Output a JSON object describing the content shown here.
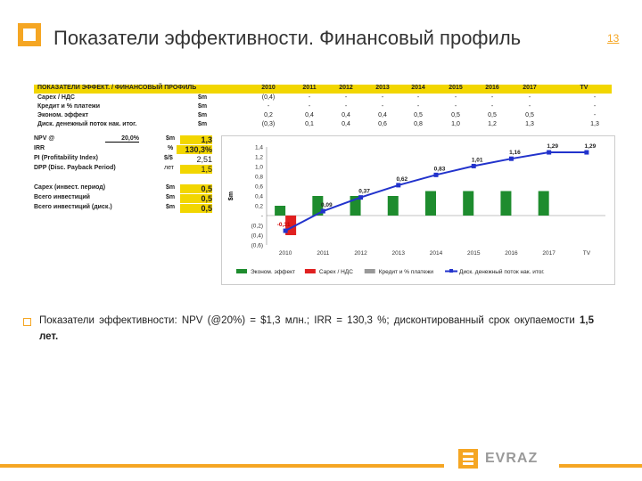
{
  "header": {
    "title": "Показатели эффективности. Финансовый профиль",
    "page": "13"
  },
  "table": {
    "header_label": "ПОКАЗАТЕЛИ ЭФФЕКТ. / ФИНАНСОВЫЙ ПРОФИЛЬ",
    "columns": [
      "2010",
      "2011",
      "2012",
      "2013",
      "2014",
      "2015",
      "2016",
      "2017",
      "TV"
    ],
    "rows": [
      {
        "label": "Capex / НДС",
        "unit": "$m",
        "values": [
          "(0,4)",
          "-",
          "-",
          "-",
          "-",
          "-",
          "-",
          "-",
          "-"
        ]
      },
      {
        "label": "Кредит и % платежи",
        "unit": "$m",
        "values": [
          "-",
          "-",
          "-",
          "-",
          "-",
          "-",
          "-",
          "-",
          "-"
        ]
      },
      {
        "label": "Эконом. эффект",
        "unit": "$m",
        "values": [
          "0,2",
          "0,4",
          "0,4",
          "0,4",
          "0,5",
          "0,5",
          "0,5",
          "0,5",
          "-"
        ]
      },
      {
        "label": "Диск. денежный поток нак. итог.",
        "unit": "$m",
        "values": [
          "(0,3)",
          "0,1",
          "0,4",
          "0,6",
          "0,8",
          "1,0",
          "1,2",
          "1,3",
          "1,3"
        ]
      }
    ]
  },
  "summary": {
    "npv_label": "NPV @",
    "npv_rate": "20,0%",
    "npv_unit": "$m",
    "npv_value": "1,3",
    "irr_label": "IRR",
    "irr_unit": "%",
    "irr_value": "130,3%",
    "pi_label": "PI (Profitability Index)",
    "pi_unit": "$/$",
    "pi_value": "2,51",
    "dpp_label": "DPP (Disc. Payback Period)",
    "dpp_unit": "лет",
    "dpp_value": "1,5",
    "capex_label": "Capex (инвест. период)",
    "capex_unit": "$m",
    "capex_value": "0,5",
    "total_label": "Всего инвестиций",
    "total_unit": "$m",
    "total_value": "0,5",
    "total_disc_label": "Всего инвестиций (диск.)",
    "total_disc_unit": "$m",
    "total_disc_value": "0,5"
  },
  "chart_data": {
    "type": "bar",
    "categories": [
      "2010",
      "2011",
      "2012",
      "2013",
      "2014",
      "2015",
      "2016",
      "2017",
      "TV"
    ],
    "ylabel": "$m",
    "ylim": [
      -0.6,
      1.4
    ],
    "yticks": [
      "1,4",
      "1,2",
      "1,0",
      "0,8",
      "0,6",
      "0,4",
      "0,2",
      "-",
      "(0,2)",
      "(0,4)",
      "(0,6)"
    ],
    "series": [
      {
        "name": "Эконом. эффект",
        "kind": "bar",
        "color": "#1e8c2e",
        "values": [
          0.2,
          0.4,
          0.4,
          0.4,
          0.5,
          0.5,
          0.5,
          0.5,
          null
        ]
      },
      {
        "name": "Capex / НДС",
        "kind": "bar",
        "color": "#e02020",
        "values": [
          -0.4,
          null,
          null,
          null,
          null,
          null,
          null,
          null,
          null
        ]
      },
      {
        "name": "Кредит и % платежи",
        "kind": "bar",
        "color": "#999999",
        "values": [
          null,
          null,
          null,
          null,
          null,
          null,
          null,
          null,
          null
        ]
      },
      {
        "name": "Диск. денежный поток нак. итог.",
        "kind": "line",
        "color": "#2233cc",
        "values": [
          -0.31,
          0.09,
          0.37,
          0.62,
          0.83,
          1.01,
          1.16,
          1.29,
          1.29
        ],
        "labels": [
          "-0,31",
          "0,09",
          "0,37",
          "0,62",
          "0,83",
          "1,01",
          "1,16",
          "1,29",
          "1,29"
        ]
      }
    ],
    "legend_position": "bottom"
  },
  "note": {
    "text": "Показатели эффективности: NPV (@20%) = $1,3 млн.; IRR = 130,3 %; дисконтированный срок окупаемости ",
    "bold": "1,5 лет."
  },
  "brand": {
    "name": "EVRAZ",
    "accent": "#f5a623"
  }
}
